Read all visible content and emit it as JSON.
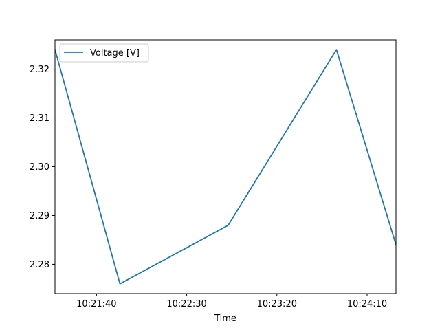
{
  "chart_data": {
    "type": "line",
    "title": "",
    "xlabel": "Time",
    "ylabel": "",
    "x": [
      "10:21:17",
      "10:21:53",
      "10:22:53",
      "10:23:53",
      "10:24:26"
    ],
    "series": [
      {
        "name": "Voltage [V]",
        "color": "#1f77b4",
        "values": [
          2.324,
          2.276,
          2.288,
          2.324,
          2.284
        ]
      }
    ],
    "xlim": [
      "10:21:17",
      "10:24:26"
    ],
    "ylim": [
      2.274,
      2.326
    ],
    "x_ticks": [
      {
        "value": "10:21:40",
        "label": "10:21:40"
      },
      {
        "value": "10:22:30",
        "label": "10:22:30"
      },
      {
        "value": "10:23:20",
        "label": "10:23:20"
      },
      {
        "value": "10:24:10",
        "label": "10:24:10"
      }
    ],
    "y_ticks": [
      {
        "value": 2.28,
        "label": "2.28"
      },
      {
        "value": 2.29,
        "label": "2.29"
      },
      {
        "value": 2.3,
        "label": "2.30"
      },
      {
        "value": 2.31,
        "label": "2.31"
      },
      {
        "value": 2.32,
        "label": "2.32"
      }
    ],
    "grid": false,
    "legend_position": "top-left"
  }
}
